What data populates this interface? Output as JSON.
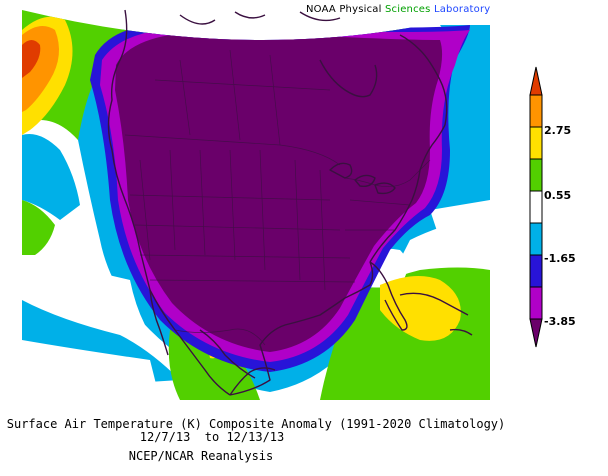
{
  "credit": {
    "prefix": "NOAA Physical ",
    "word1": "Sciences",
    "word2": "Laboratory",
    "word1_color": "#00a000",
    "word2_color": "#1e46ff"
  },
  "title": {
    "line1": "Surface Air Temperature (K) Composite Anomaly (1991-2020 Climatology)",
    "line2": "12/7/13  to 12/13/13",
    "line3": "NCEP/NCAR Reanalysis"
  },
  "colorbar": {
    "labels": [
      "2.75",
      "0.55",
      "-1.65",
      "-3.85"
    ],
    "colors": [
      "#e03c00",
      "#ff9400",
      "#ffe000",
      "#52d000",
      "#ffffff",
      "#00b0e8",
      "#2814d8",
      "#b000c8",
      "#6a006a"
    ]
  }
}
